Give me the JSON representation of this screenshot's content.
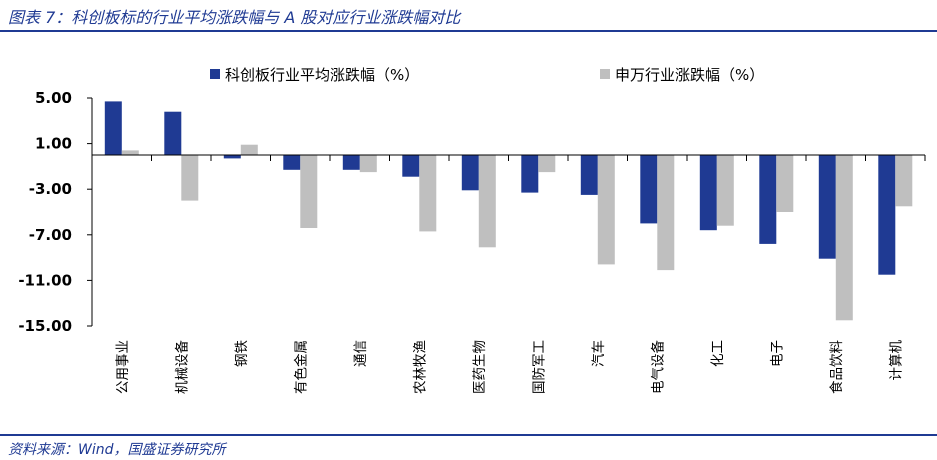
{
  "page": {
    "title": "图表 7：科创板标的行业平均涨跌幅与 A 股对应行业涨跌幅对比",
    "source": "资料来源：Wind，国盛证券研究所"
  },
  "colors": {
    "brand": "#1f3a93",
    "series_primary": "#1f3a93",
    "series_secondary": "#bfbfbf",
    "axis": "#000000"
  },
  "chart_data": {
    "type": "bar",
    "title": "",
    "xlabel": "",
    "ylabel": "",
    "ylim": [
      -15,
      5
    ],
    "yticks": [
      5,
      1,
      -3,
      -7,
      -11,
      -15
    ],
    "ytick_labels": [
      "5.00",
      "1.00",
      "-3.00",
      "-7.00",
      "-11.00",
      "-15.00"
    ],
    "grid": false,
    "legend_position": "top",
    "categories": [
      "公用事业",
      "机械设备",
      "钢铁",
      "有色金属",
      "通信",
      "农林牧渔",
      "医药生物",
      "国防军工",
      "汽车",
      "电气设备",
      "化工",
      "电子",
      "食品饮料",
      "计算机"
    ],
    "series": [
      {
        "name": "科创板行业平均涨跌幅（%）",
        "color": "#1f3a93",
        "values": [
          4.7,
          3.8,
          -0.3,
          -1.3,
          -1.3,
          -1.9,
          -3.1,
          -3.3,
          -3.5,
          -6.0,
          -6.6,
          -7.8,
          -9.1,
          -10.5
        ]
      },
      {
        "name": "申万行业涨跌幅（%）",
        "color": "#bfbfbf",
        "values": [
          0.4,
          -4.0,
          0.9,
          -6.4,
          -1.5,
          -6.7,
          -8.1,
          -1.5,
          -9.6,
          -10.1,
          -6.2,
          -5.0,
          -14.5,
          -4.5
        ]
      }
    ]
  }
}
